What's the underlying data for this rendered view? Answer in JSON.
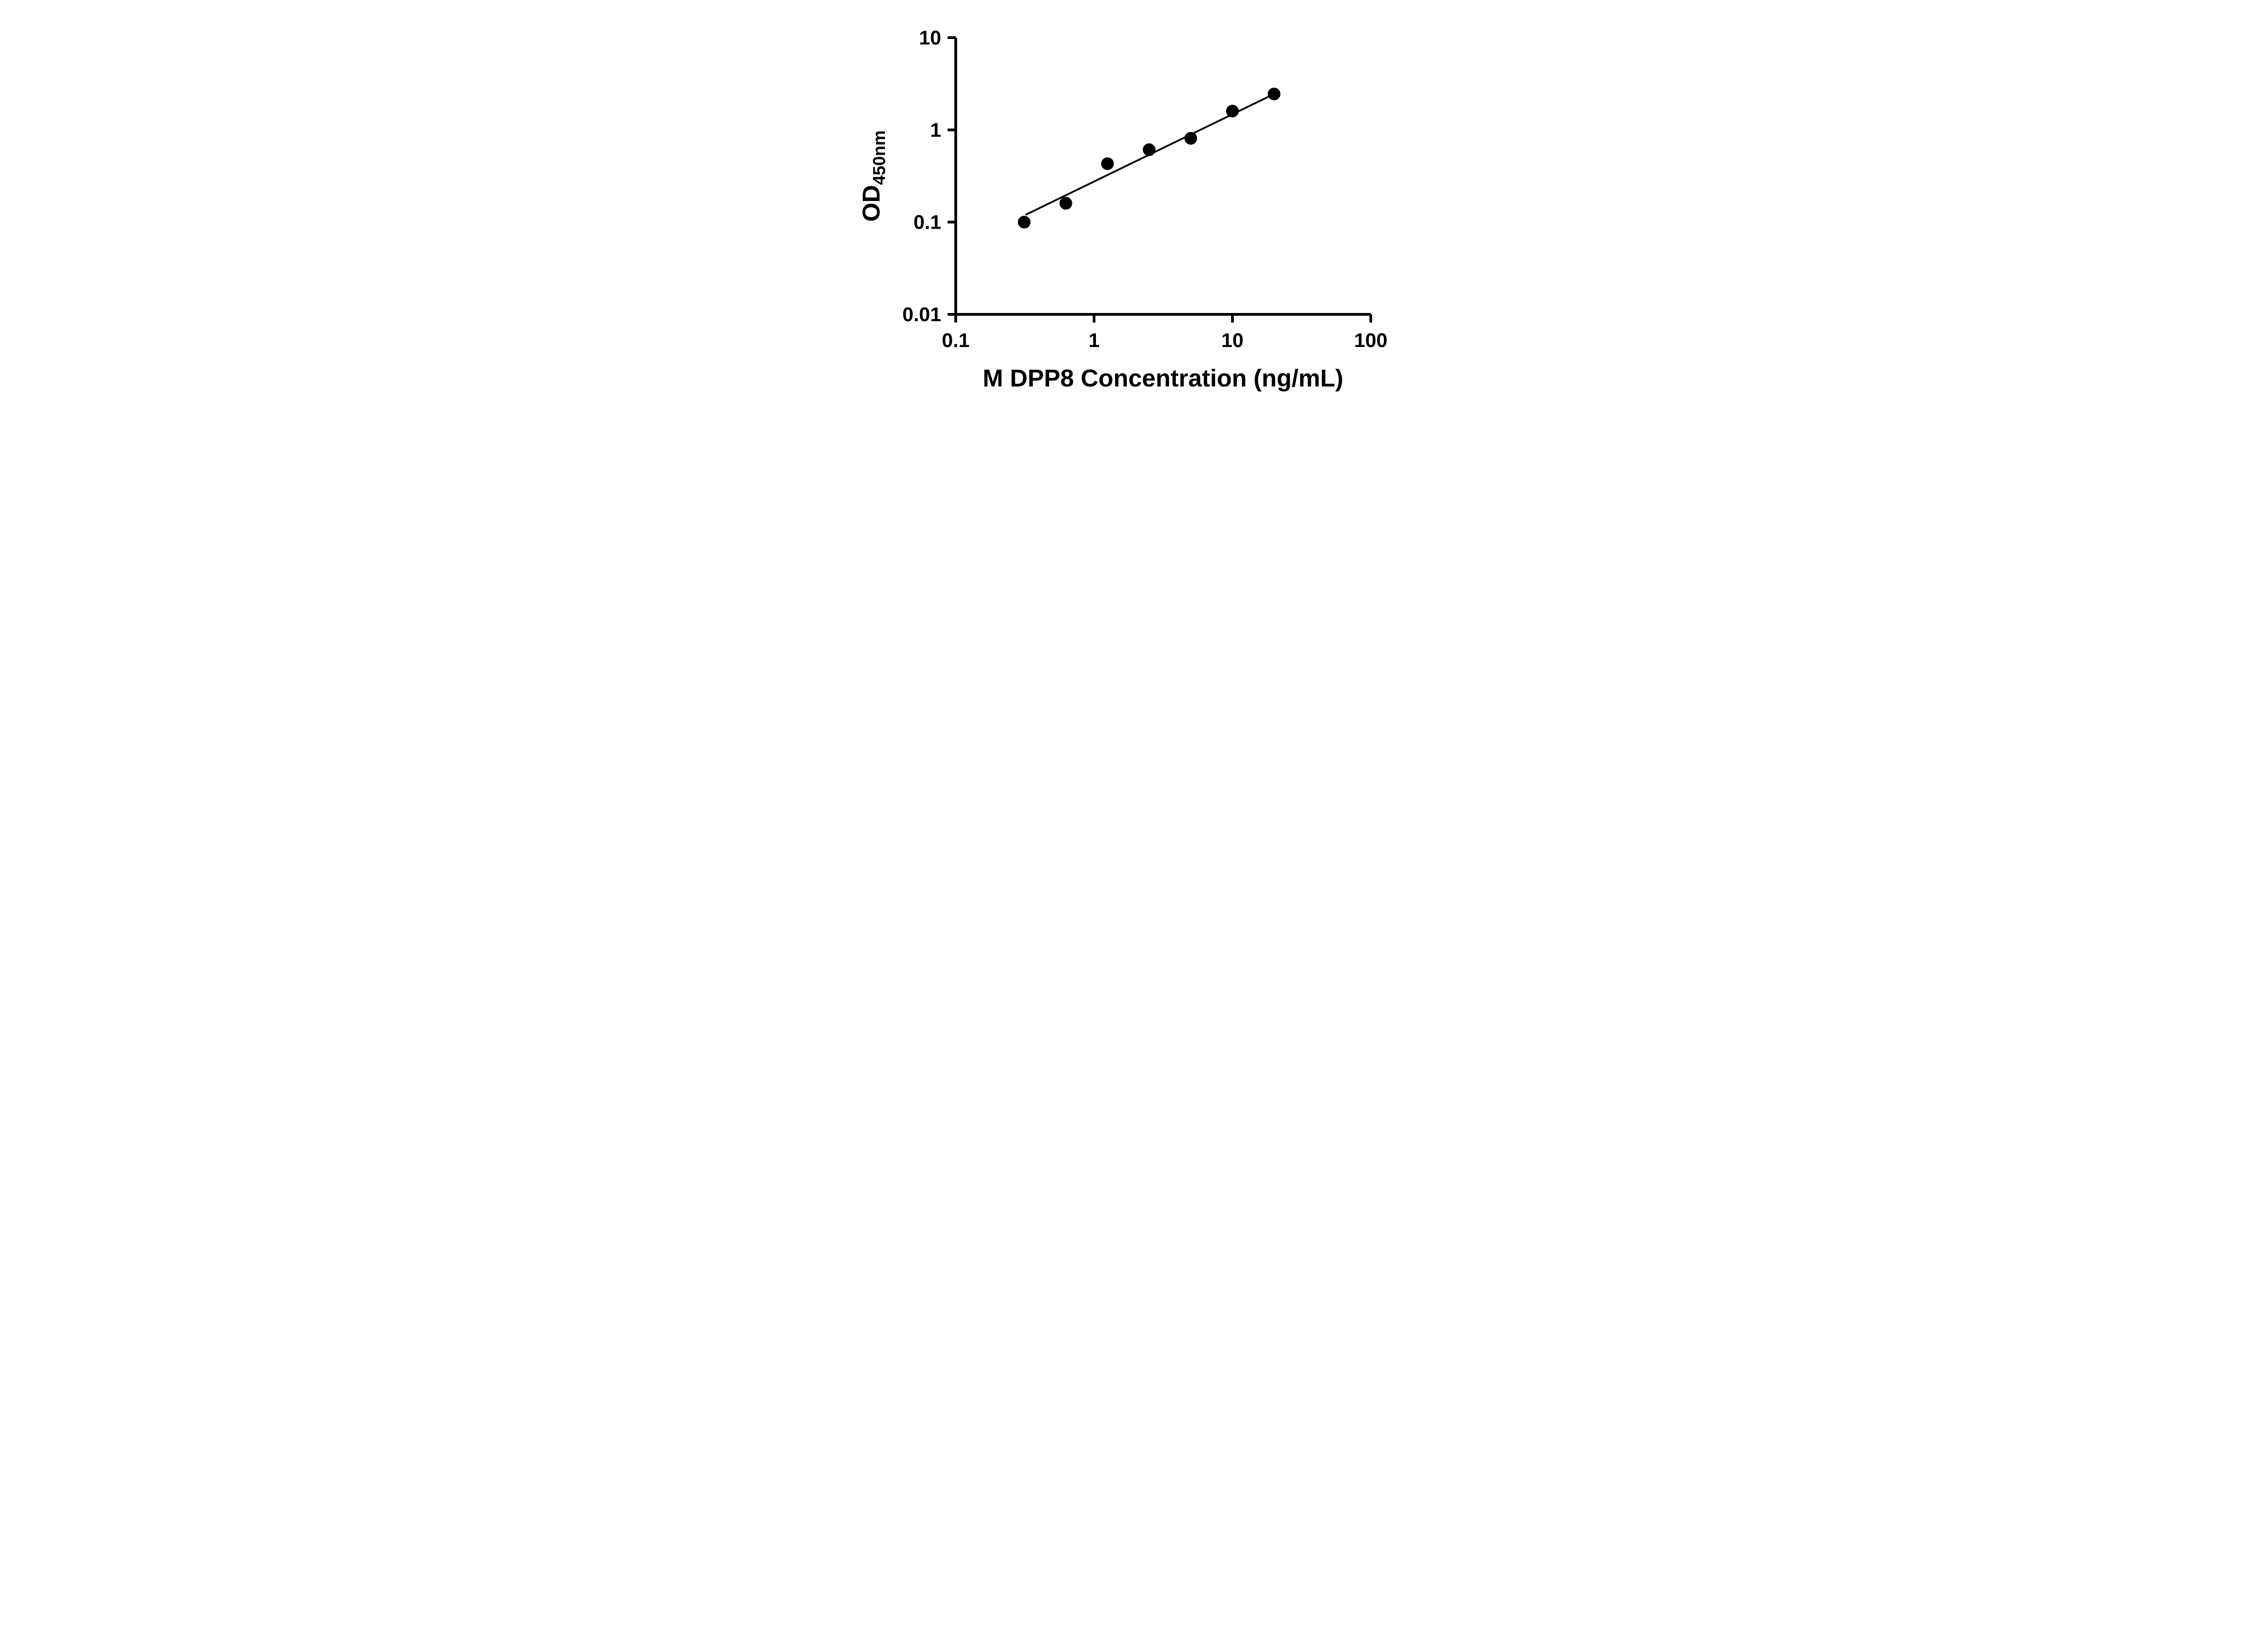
{
  "figure": {
    "background": "#ffffff",
    "ink": "#000000"
  },
  "chart_data": {
    "type": "scatter",
    "title": "",
    "xlabel": "M DPP8 Concentration (ng/mL)",
    "ylabel_base": "OD",
    "ylabel_subscript": "450nm",
    "x_scale": "log10",
    "y_scale": "log10",
    "xlim": [
      0.1,
      100
    ],
    "ylim": [
      0.01,
      10
    ],
    "grid": false,
    "legend": false,
    "x_ticks": [
      {
        "value": 0.1,
        "label": "0.1"
      },
      {
        "value": 1,
        "label": "1"
      },
      {
        "value": 10,
        "label": "10"
      },
      {
        "value": 100,
        "label": "100"
      }
    ],
    "y_ticks": [
      {
        "value": 0.01,
        "label": "0.01"
      },
      {
        "value": 0.1,
        "label": "0.1"
      },
      {
        "value": 1,
        "label": "1"
      },
      {
        "value": 10,
        "label": "10"
      }
    ],
    "series": [
      {
        "name": "fit-line",
        "type": "line",
        "color": "#000000",
        "points": [
          {
            "x": 0.32,
            "y": 0.12
          },
          {
            "x": 20,
            "y": 2.45
          }
        ]
      },
      {
        "name": "standards",
        "type": "scatter",
        "marker": "circle",
        "color": "#000000",
        "points": [
          {
            "x": 0.3125,
            "y": 0.1
          },
          {
            "x": 0.625,
            "y": 0.16
          },
          {
            "x": 1.25,
            "y": 0.43
          },
          {
            "x": 2.5,
            "y": 0.61
          },
          {
            "x": 5,
            "y": 0.81
          },
          {
            "x": 10,
            "y": 1.6
          },
          {
            "x": 20,
            "y": 2.45
          }
        ]
      }
    ]
  }
}
